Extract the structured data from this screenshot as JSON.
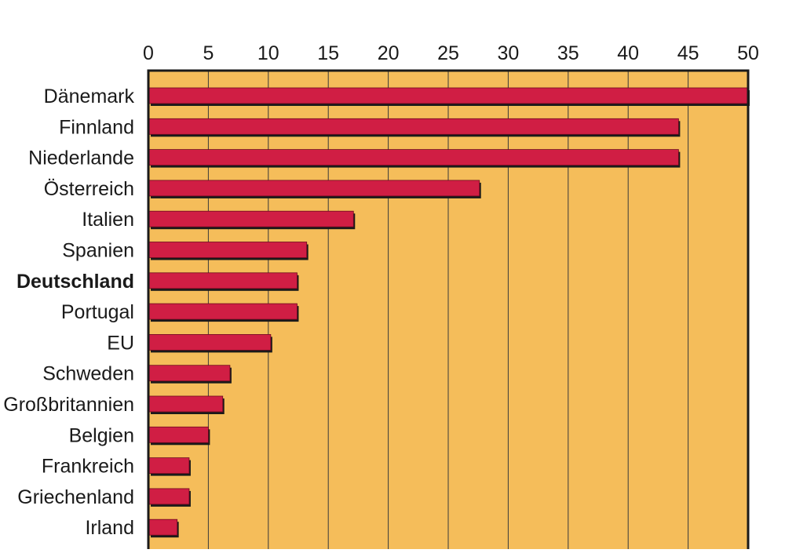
{
  "chart_data": {
    "type": "bar",
    "orientation": "horizontal",
    "categories": [
      "Dänemark",
      "Finnland",
      "Niederlande",
      "Österreich",
      "Italien",
      "Spanien",
      "Deutschland",
      "Portugal",
      "EU",
      "Schweden",
      "Großbritannien",
      "Belgien",
      "Frankreich",
      "Griechenland",
      "Irland"
    ],
    "values": [
      50,
      44.2,
      44.2,
      27.6,
      17.1,
      13.2,
      12.4,
      12.4,
      10.2,
      6.8,
      6.2,
      5.0,
      3.4,
      3.4,
      2.4
    ],
    "highlight_category": "Deutschland",
    "xticks": [
      "0",
      "5",
      "10",
      "15",
      "20",
      "25",
      "30",
      "35",
      "40",
      "45",
      "50"
    ],
    "xlim": [
      0,
      50
    ],
    "x_axis_position": "top",
    "grid": true,
    "title": "",
    "xlabel": "",
    "ylabel": "",
    "colors": {
      "bar": "#d01e44",
      "background": "#f5bd5a",
      "frame": "#1a1a1a",
      "grid": "#3a3a3a"
    }
  }
}
